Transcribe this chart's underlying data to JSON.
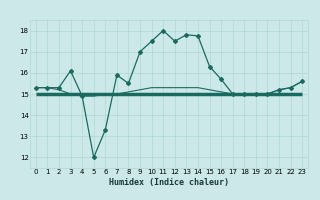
{
  "xlabel": "Humidex (Indice chaleur)",
  "bg_color": "#cce8e8",
  "line_color": "#1a6a60",
  "grid_color": "#b0d8d0",
  "xlim": [
    -0.5,
    23.5
  ],
  "ylim": [
    11.5,
    18.5
  ],
  "xticks": [
    0,
    1,
    2,
    3,
    4,
    5,
    6,
    7,
    8,
    9,
    10,
    11,
    12,
    13,
    14,
    15,
    16,
    17,
    18,
    19,
    20,
    21,
    22,
    23
  ],
  "yticks": [
    12,
    13,
    14,
    15,
    16,
    17,
    18
  ],
  "series1_x": [
    0,
    1,
    2,
    3,
    4,
    5,
    6,
    7,
    8,
    9,
    10,
    11,
    12,
    13,
    14,
    15,
    16,
    17,
    18,
    19,
    20,
    21,
    22,
    23
  ],
  "series1_y": [
    15.3,
    15.3,
    15.3,
    16.1,
    14.9,
    12.0,
    13.3,
    15.9,
    15.5,
    17.0,
    17.5,
    18.0,
    17.5,
    17.8,
    17.75,
    16.3,
    15.7,
    15.0,
    15.0,
    15.0,
    15.0,
    15.2,
    15.3,
    15.6
  ],
  "series2_x": [
    0,
    1,
    2,
    3,
    4,
    5,
    6,
    7,
    8,
    9,
    10,
    11,
    12,
    13,
    14,
    15,
    16,
    17,
    18,
    19,
    20,
    21,
    22,
    23
  ],
  "series2_y": [
    15.0,
    15.0,
    15.0,
    15.0,
    15.0,
    15.0,
    15.0,
    15.0,
    15.0,
    15.0,
    15.0,
    15.0,
    15.0,
    15.0,
    15.0,
    15.0,
    15.0,
    15.0,
    15.0,
    15.0,
    15.0,
    15.0,
    15.0,
    15.0
  ],
  "series3_x": [
    0,
    1,
    2,
    3,
    4,
    5,
    6,
    7,
    8,
    9,
    10,
    11,
    12,
    13,
    14,
    15,
    16,
    17,
    18,
    19,
    20,
    21,
    22,
    23
  ],
  "series3_y": [
    15.3,
    15.3,
    15.2,
    15.0,
    14.9,
    14.9,
    15.0,
    15.0,
    15.1,
    15.2,
    15.3,
    15.3,
    15.3,
    15.3,
    15.3,
    15.2,
    15.1,
    15.0,
    15.0,
    15.0,
    15.0,
    15.2,
    15.3,
    15.6
  ]
}
